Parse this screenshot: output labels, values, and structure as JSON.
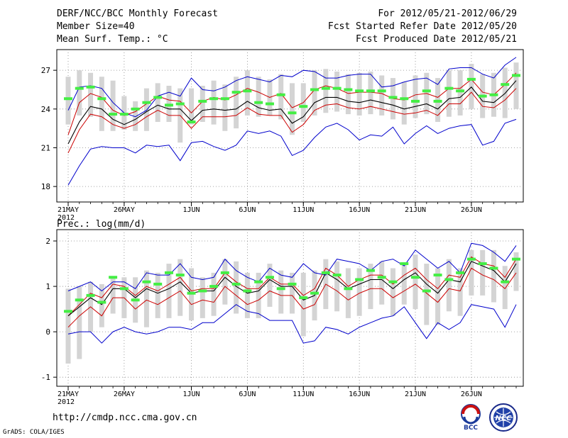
{
  "header": {
    "title": "DERF/NCC/BCC Monthly Forecast",
    "member_size": "Member Size=40",
    "variable1": "Mean Surf. Temp.: °C",
    "period": "For 2012/05/21-2012/06/29",
    "started_refer": "Fcst Started Refer Date 2012/05/20",
    "produced": "Fcst Produced Date 2012/05/21"
  },
  "footer": {
    "url": "http://cmdp.ncc.cma.gov.cn",
    "grads": "GrADS: COLA/IGES",
    "logo_bcc": "BCC",
    "logo_ncc": "NCC"
  },
  "colors": {
    "max_min": "#0000cc",
    "spread": "#cc0000",
    "mean": "#000000",
    "box": "#d4d4d4",
    "marker": "#44ee44"
  },
  "chart_data": [
    {
      "type": "line",
      "title": "Mean Surf. Temp.: °C",
      "xlabel_year": "2012",
      "x_tick_labels": [
        {
          "day": 0,
          "label": "21MAY"
        },
        {
          "day": 5,
          "label": "26MAY"
        },
        {
          "day": 11,
          "label": "1JUN"
        },
        {
          "day": 16,
          "label": "6JUN"
        },
        {
          "day": 21,
          "label": "11JUN"
        },
        {
          "day": 26,
          "label": "16JUN"
        },
        {
          "day": 31,
          "label": "21JUN"
        },
        {
          "day": 36,
          "label": "26JUN"
        }
      ],
      "ylim": [
        16.8,
        28.6
      ],
      "yticks": [
        18,
        21,
        24,
        27
      ],
      "series": [
        {
          "name": "max",
          "values": [
            23.9,
            25.7,
            25.8,
            25.6,
            24.5,
            23.7,
            23.4,
            23.9,
            25.0,
            25.3,
            25.0,
            26.4,
            25.5,
            25.4,
            25.7,
            26.2,
            26.5,
            26.3,
            26.1,
            26.6,
            26.5,
            27.0,
            26.9,
            26.4,
            26.4,
            26.6,
            26.7,
            26.7,
            25.7,
            25.8,
            26.1,
            26.3,
            26.4,
            25.9,
            27.1,
            27.2,
            27.2,
            26.7,
            26.4,
            27.4,
            28.0
          ]
        },
        {
          "name": "upper",
          "values": [
            22.0,
            24.5,
            25.2,
            24.9,
            23.9,
            23.5,
            23.8,
            24.4,
            25.0,
            24.7,
            24.6,
            23.7,
            24.6,
            24.9,
            24.7,
            25.1,
            25.6,
            25.3,
            24.9,
            25.2,
            24.1,
            24.5,
            25.5,
            25.8,
            25.6,
            25.2,
            25.3,
            25.3,
            25.2,
            24.8,
            24.7,
            25.1,
            25.2,
            24.9,
            25.6,
            25.6,
            26.3,
            25.3,
            25.1,
            25.9,
            26.8
          ]
        },
        {
          "name": "mean",
          "values": [
            21.3,
            23.0,
            24.2,
            24.0,
            23.2,
            22.8,
            23.2,
            23.8,
            24.3,
            24.0,
            24.0,
            23.1,
            23.9,
            24.0,
            23.9,
            24.0,
            24.6,
            24.1,
            23.9,
            24.0,
            22.9,
            23.4,
            24.5,
            24.9,
            24.9,
            24.6,
            24.5,
            24.7,
            24.5,
            24.3,
            24.0,
            24.2,
            24.4,
            24.0,
            24.8,
            24.9,
            25.7,
            24.6,
            24.5,
            25.2,
            26.2
          ]
        },
        {
          "name": "lower",
          "values": [
            20.6,
            22.4,
            23.6,
            23.4,
            22.8,
            22.5,
            22.8,
            23.4,
            23.9,
            23.5,
            23.5,
            22.5,
            23.4,
            23.4,
            23.4,
            23.5,
            24.1,
            23.6,
            23.5,
            23.5,
            22.2,
            22.8,
            23.9,
            24.3,
            24.4,
            24.1,
            24.0,
            24.2,
            24.0,
            23.8,
            23.6,
            23.7,
            23.9,
            23.5,
            24.4,
            24.4,
            25.3,
            24.2,
            24.1,
            24.7,
            25.6
          ]
        },
        {
          "name": "min",
          "values": [
            18.1,
            19.6,
            20.9,
            21.1,
            21.0,
            21.0,
            20.6,
            21.2,
            21.1,
            21.2,
            20.0,
            21.4,
            21.5,
            21.1,
            20.8,
            21.2,
            22.3,
            22.1,
            22.3,
            21.9,
            20.4,
            20.8,
            21.8,
            22.6,
            22.9,
            22.4,
            21.6,
            22.0,
            21.9,
            22.6,
            21.3,
            22.1,
            22.7,
            22.1,
            22.5,
            22.7,
            22.8,
            21.2,
            21.5,
            22.9,
            23.2
          ]
        },
        {
          "name": "box_top",
          "values": [
            26.5,
            27.0,
            26.8,
            26.5,
            26.2,
            25.0,
            24.6,
            25.6,
            26.0,
            25.8,
            25.6,
            25.6,
            25.8,
            26.2,
            25.9,
            26.5,
            27.0,
            26.5,
            26.3,
            26.7,
            26.0,
            26.0,
            27.0,
            27.1,
            26.9,
            26.7,
            26.8,
            26.9,
            26.6,
            26.4,
            26.1,
            26.6,
            26.8,
            26.4,
            27.0,
            27.0,
            27.5,
            26.7,
            26.8,
            27.2,
            27.6
          ]
        },
        {
          "name": "box_bottom",
          "values": [
            22.8,
            23.5,
            23.4,
            22.3,
            22.3,
            22.4,
            22.3,
            22.3,
            23.0,
            23.0,
            21.4,
            22.8,
            23.0,
            22.8,
            22.3,
            22.5,
            23.5,
            23.4,
            23.5,
            23.2,
            22.0,
            23.0,
            23.5,
            23.7,
            23.8,
            23.6,
            23.5,
            23.6,
            23.5,
            23.2,
            22.8,
            23.3,
            23.6,
            23.0,
            23.4,
            23.5,
            24.0,
            23.3,
            23.4,
            23.3,
            24.0
          ]
        },
        {
          "name": "markers",
          "values": [
            24.8,
            25.6,
            25.7,
            24.8,
            23.6,
            23.6,
            24.0,
            24.5,
            24.9,
            24.3,
            24.4,
            23.0,
            24.6,
            24.8,
            24.8,
            25.3,
            25.4,
            24.5,
            24.4,
            25.1,
            23.7,
            24.2,
            25.5,
            25.6,
            25.6,
            25.5,
            25.4,
            25.4,
            25.4,
            24.9,
            24.8,
            24.6,
            25.4,
            24.6,
            25.6,
            25.4,
            26.3,
            25.0,
            25.1,
            25.9,
            26.6
          ]
        }
      ]
    },
    {
      "type": "line",
      "title": "Prec.: log(mm/d)",
      "xlabel_year": "2012",
      "x_tick_labels": [
        {
          "day": 0,
          "label": "21MAY"
        },
        {
          "day": 5,
          "label": "26MAY"
        },
        {
          "day": 11,
          "label": "1JUN"
        },
        {
          "day": 16,
          "label": "6JUN"
        },
        {
          "day": 21,
          "label": "11JUN"
        },
        {
          "day": 26,
          "label": "16JUN"
        },
        {
          "day": 31,
          "label": "21JUN"
        },
        {
          "day": 36,
          "label": "26JUN"
        }
      ],
      "ylim": [
        -1.2,
        2.25
      ],
      "yticks": [
        -1,
        0,
        1,
        2
      ],
      "series": [
        {
          "name": "max",
          "values": [
            0.9,
            1.0,
            1.1,
            0.9,
            1.1,
            1.1,
            0.95,
            1.3,
            1.25,
            1.25,
            1.5,
            1.2,
            1.15,
            1.2,
            1.6,
            1.35,
            1.2,
            1.1,
            1.4,
            1.25,
            1.2,
            1.5,
            1.3,
            1.25,
            1.6,
            1.55,
            1.5,
            1.35,
            1.55,
            1.6,
            1.45,
            1.8,
            1.6,
            1.4,
            1.55,
            1.3,
            1.95,
            1.9,
            1.75,
            1.55,
            1.9
          ]
        },
        {
          "name": "upper",
          "values": [
            0.35,
            0.6,
            0.85,
            0.75,
            1.05,
            1.0,
            0.8,
            1.0,
            0.9,
            1.05,
            1.2,
            0.9,
            0.95,
            0.95,
            1.3,
            1.1,
            0.95,
            0.95,
            1.2,
            1.05,
            1.05,
            0.8,
            0.95,
            1.4,
            1.25,
            1.0,
            1.15,
            1.25,
            1.25,
            1.05,
            1.25,
            1.4,
            1.15,
            0.95,
            1.25,
            1.2,
            1.65,
            1.5,
            1.45,
            1.2,
            1.6
          ]
        },
        {
          "name": "mean",
          "values": [
            0.35,
            0.55,
            0.75,
            0.6,
            0.95,
            0.95,
            0.75,
            0.95,
            0.85,
            0.95,
            1.1,
            0.85,
            0.9,
            0.9,
            1.2,
            1.0,
            0.85,
            0.9,
            1.15,
            1.0,
            1.0,
            0.7,
            0.8,
            1.3,
            1.15,
            0.95,
            1.05,
            1.15,
            1.15,
            0.95,
            1.15,
            1.3,
            1.05,
            0.85,
            1.15,
            1.1,
            1.55,
            1.45,
            1.35,
            1.1,
            1.5
          ]
        },
        {
          "name": "lower",
          "values": [
            0.1,
            0.35,
            0.55,
            0.35,
            0.75,
            0.75,
            0.5,
            0.7,
            0.6,
            0.75,
            0.9,
            0.6,
            0.7,
            0.65,
            1.0,
            0.8,
            0.6,
            0.7,
            0.9,
            0.8,
            0.8,
            0.5,
            0.6,
            1.05,
            0.9,
            0.7,
            0.85,
            0.95,
            0.95,
            0.75,
            0.9,
            1.05,
            0.85,
            0.65,
            0.95,
            0.9,
            1.4,
            1.25,
            1.15,
            0.95,
            1.3
          ]
        },
        {
          "name": "min",
          "values": [
            -0.05,
            0.0,
            0.0,
            -0.25,
            0.0,
            0.1,
            0.0,
            -0.05,
            0.0,
            0.1,
            0.1,
            0.05,
            0.2,
            0.2,
            0.4,
            0.6,
            0.45,
            0.4,
            0.25,
            0.25,
            0.25,
            -0.25,
            -0.2,
            0.1,
            0.05,
            -0.05,
            0.1,
            0.2,
            0.3,
            0.35,
            0.55,
            0.2,
            -0.15,
            0.2,
            0.05,
            0.2,
            0.6,
            0.55,
            0.5,
            0.1,
            0.6
          ]
        },
        {
          "name": "box_top",
          "values": [
            0.95,
            1.0,
            1.1,
            1.05,
            1.2,
            1.2,
            1.2,
            1.35,
            1.3,
            1.5,
            1.6,
            1.4,
            1.2,
            1.3,
            1.6,
            1.55,
            1.3,
            1.3,
            1.5,
            1.35,
            1.3,
            1.3,
            1.35,
            1.6,
            1.55,
            1.4,
            1.4,
            1.5,
            1.55,
            1.4,
            1.5,
            1.7,
            1.5,
            1.4,
            1.6,
            1.4,
            1.8,
            1.8,
            1.8,
            1.45,
            1.75
          ]
        },
        {
          "name": "box_bottom",
          "values": [
            -0.7,
            -0.6,
            0.0,
            0.1,
            0.4,
            0.3,
            0.2,
            0.1,
            0.3,
            0.3,
            0.35,
            0.25,
            0.3,
            0.35,
            0.6,
            0.4,
            0.3,
            0.3,
            0.55,
            0.4,
            0.4,
            -0.1,
            0.25,
            0.5,
            0.45,
            0.3,
            0.35,
            0.5,
            0.6,
            0.35,
            0.6,
            0.5,
            0.15,
            0.15,
            0.45,
            0.35,
            0.8,
            0.8,
            0.65,
            0.5,
            0.9
          ]
        },
        {
          "name": "markers",
          "values": [
            0.45,
            0.7,
            0.8,
            0.65,
            1.2,
            0.95,
            0.7,
            1.1,
            1.05,
            1.3,
            1.25,
            0.85,
            0.9,
            1.0,
            1.3,
            1.05,
            0.9,
            1.1,
            1.2,
            0.95,
            1.05,
            0.75,
            0.85,
            1.3,
            1.25,
            0.95,
            1.15,
            1.35,
            1.2,
            1.1,
            1.5,
            1.2,
            0.9,
            1.25,
            1.15,
            1.3,
            1.6,
            1.5,
            1.4,
            1.1,
            1.6
          ]
        }
      ]
    }
  ]
}
